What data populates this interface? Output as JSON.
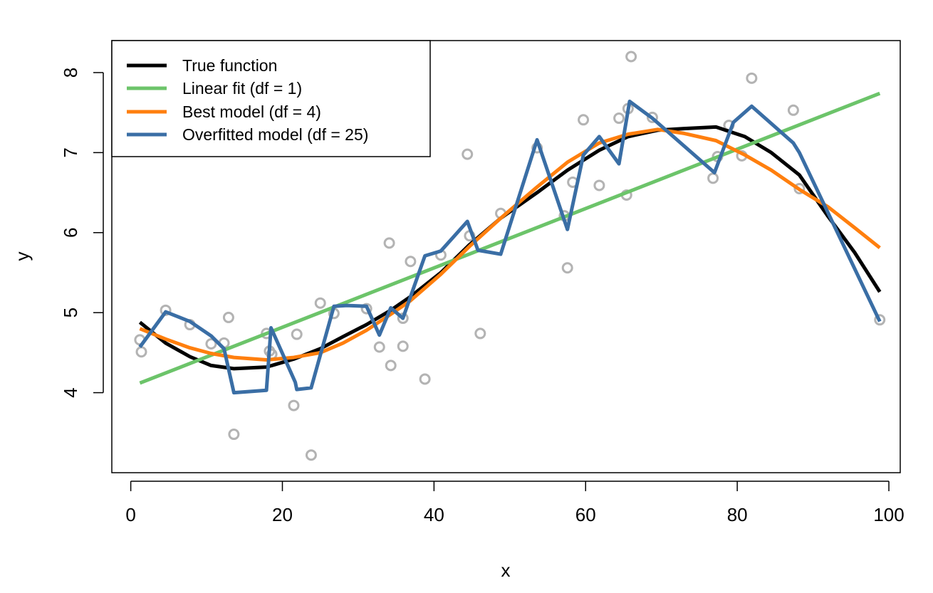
{
  "chart_data": {
    "type": "line",
    "title": "",
    "xlabel": "x",
    "ylabel": "y",
    "xlim": [
      -2.5,
      101.5
    ],
    "ylim": [
      3.0,
      8.4
    ],
    "xticks": [
      "0",
      "20",
      "40",
      "60",
      "80",
      "100"
    ],
    "yticks": [
      "4",
      "5",
      "6",
      "7",
      "8"
    ],
    "grid": false,
    "legend_position": "top-left",
    "points": {
      "color": "#b3b3b3",
      "x": [
        1.2,
        1.4,
        4.6,
        7.8,
        10.6,
        12.3,
        12.9,
        13.6,
        17.9,
        18.3,
        18.6,
        21.5,
        21.9,
        23.8,
        25.0,
        26.8,
        31.1,
        32.8,
        34.1,
        34.3,
        35.9,
        35.9,
        36.9,
        38.8,
        40.9,
        44.4,
        44.7,
        46.1,
        48.8,
        53.6,
        57.2,
        57.6,
        58.3,
        59.7,
        61.8,
        64.4,
        65.4,
        65.6,
        66.0,
        68.8,
        76.8,
        77.4,
        78.9,
        80.6,
        81.9,
        87.4,
        88.2,
        98.8
      ],
      "y": [
        4.66,
        4.51,
        5.03,
        4.85,
        4.61,
        4.62,
        4.94,
        3.48,
        4.74,
        4.52,
        4.48,
        3.84,
        4.73,
        3.22,
        5.12,
        4.99,
        5.05,
        4.57,
        5.87,
        4.34,
        4.93,
        4.58,
        5.64,
        4.17,
        5.72,
        6.98,
        5.96,
        4.74,
        6.24,
        7.06,
        6.21,
        5.56,
        6.63,
        7.41,
        6.59,
        7.43,
        6.47,
        7.55,
        8.2,
        7.44,
        6.68,
        6.95,
        7.34,
        6.96,
        7.93,
        7.53,
        6.55,
        4.91
      ]
    },
    "series": [
      {
        "name": "True function",
        "color": "#000000",
        "x": [
          1.2,
          4.6,
          7.8,
          10.6,
          13.6,
          17.9,
          21.5,
          25.0,
          28.0,
          31.1,
          34.3,
          36.9,
          40.9,
          44.7,
          48.8,
          53.6,
          57.6,
          61.8,
          65.6,
          69.5,
          73.0,
          77.2,
          81.0,
          84.5,
          88.2,
          92.0,
          95.5,
          98.8
        ],
        "y": [
          4.88,
          4.62,
          4.45,
          4.34,
          4.3,
          4.32,
          4.42,
          4.55,
          4.7,
          4.85,
          5.03,
          5.2,
          5.5,
          5.85,
          6.18,
          6.5,
          6.78,
          7.03,
          7.2,
          7.28,
          7.3,
          7.32,
          7.2,
          7.0,
          6.72,
          6.2,
          5.75,
          5.26
        ]
      },
      {
        "name": "Linear fit (df = 1)",
        "color": "#6cc46a",
        "x": [
          1.2,
          98.8
        ],
        "y": [
          4.12,
          7.74
        ]
      },
      {
        "name": "Best model (df = 4)",
        "color": "#ff7f0e",
        "x": [
          1.2,
          4.6,
          7.8,
          10.6,
          13.6,
          17.9,
          21.5,
          25.0,
          28.0,
          31.1,
          34.3,
          36.9,
          40.9,
          44.7,
          48.8,
          53.6,
          57.6,
          61.8,
          65.6,
          69.5,
          73.0,
          77.2,
          81.0,
          84.5,
          88.2,
          92.0,
          95.5,
          98.8
        ],
        "y": [
          4.8,
          4.67,
          4.56,
          4.49,
          4.44,
          4.41,
          4.44,
          4.5,
          4.62,
          4.78,
          4.98,
          5.15,
          5.48,
          5.83,
          6.18,
          6.57,
          6.88,
          7.12,
          7.23,
          7.29,
          7.24,
          7.15,
          6.97,
          6.78,
          6.54,
          6.32,
          6.06,
          5.81
        ]
      },
      {
        "name": "Overfitted model (df = 25)",
        "color": "#3a6ea5",
        "x": [
          1.2,
          4.6,
          7.8,
          10.6,
          12.3,
          13.6,
          17.9,
          18.5,
          21.7,
          21.9,
          23.8,
          26.8,
          28.5,
          31.1,
          32.8,
          34.3,
          35.9,
          38.8,
          40.9,
          44.4,
          45.8,
          48.8,
          53.6,
          57.6,
          59.7,
          61.8,
          64.4,
          65.8,
          68.8,
          77.0,
          79.5,
          81.9,
          87.4,
          88.2,
          98.8
        ],
        "y": [
          4.57,
          5.01,
          4.89,
          4.71,
          4.55,
          4.0,
          4.03,
          4.81,
          4.13,
          4.04,
          4.06,
          5.08,
          5.09,
          5.08,
          4.72,
          5.06,
          4.93,
          5.71,
          5.77,
          6.14,
          5.78,
          5.73,
          7.16,
          6.04,
          6.97,
          7.2,
          6.86,
          7.64,
          7.43,
          6.75,
          7.38,
          7.58,
          7.12,
          7.0,
          4.89
        ]
      }
    ]
  }
}
